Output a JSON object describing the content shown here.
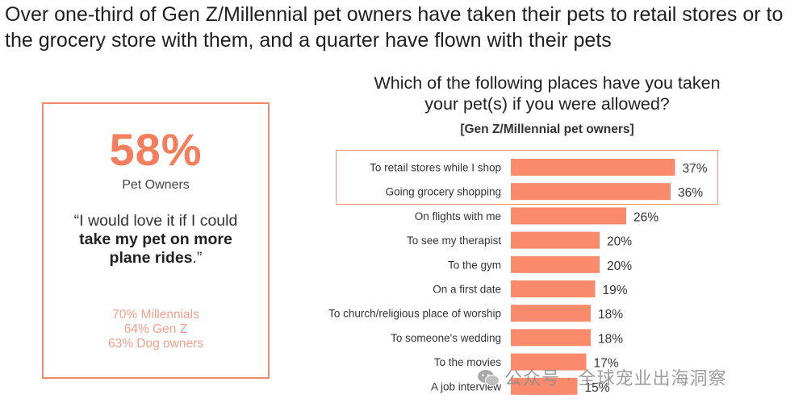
{
  "headline": "Over one-third of Gen Z/Millennial pet owners have taken their pets to retail stores or to the grocery store with them, and a quarter have flown with their pets",
  "stat_panel": {
    "big_number": "58%",
    "label": "Pet Owners",
    "quote_before": "“I would love it if I could ",
    "quote_bold": "take my pet on more plane rides",
    "quote_after": ".”",
    "breakdown": [
      "70% Millennials",
      "64% Gen Z",
      "63% Dog owners"
    ]
  },
  "watermark": "公众号 · 全球宠业出海洞察",
  "colors": {
    "bar": "#fa8a6c",
    "accent": "#f47e5c",
    "border": "#f08a6c"
  },
  "chart_data": {
    "type": "bar",
    "orientation": "horizontal",
    "title": "Which of the following places have you taken your pet(s) if you were allowed?",
    "subtitle": "[Gen Z/Millennial pet owners]",
    "categories": [
      "To retail stores while I shop",
      "Going grocery shopping",
      "On flights with me",
      "To see my therapist",
      "To the gym",
      "On a first date",
      "To church/religious place of worship",
      "To someone's wedding",
      "To the movies",
      "A job interview"
    ],
    "values": [
      37,
      36,
      26,
      20,
      20,
      19,
      18,
      18,
      17,
      15
    ],
    "value_labels": [
      "37%",
      "36%",
      "26%",
      "20%",
      "20%",
      "19%",
      "18%",
      "18%",
      "17%",
      "15%"
    ],
    "highlighted": [
      "To retail stores while I shop",
      "Going grocery shopping"
    ],
    "xlim": [
      0,
      100
    ]
  }
}
